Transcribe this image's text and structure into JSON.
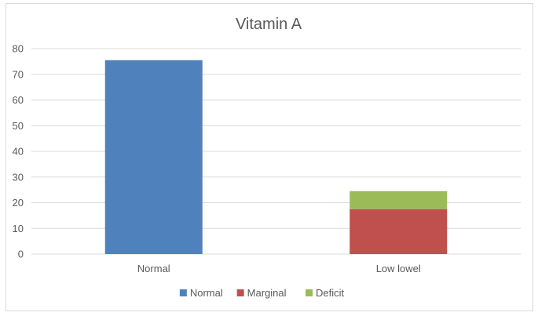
{
  "chart_data": {
    "type": "bar",
    "stacked": true,
    "title": "Vitamin A",
    "xlabel": "",
    "ylabel": "",
    "categories": [
      "Normal",
      "Low lowel"
    ],
    "ylim": [
      0,
      80
    ],
    "yticks": [
      0,
      10,
      20,
      30,
      40,
      50,
      60,
      70,
      80
    ],
    "grid": true,
    "legend_position": "bottom",
    "series": [
      {
        "name": "Normal",
        "color": "#4f81bd",
        "values": [
          75.5,
          0
        ]
      },
      {
        "name": "Marginal",
        "color": "#c0504d",
        "values": [
          0,
          17.5
        ]
      },
      {
        "name": "Deficit",
        "color": "#9bbb59",
        "values": [
          0,
          7
        ]
      }
    ]
  }
}
